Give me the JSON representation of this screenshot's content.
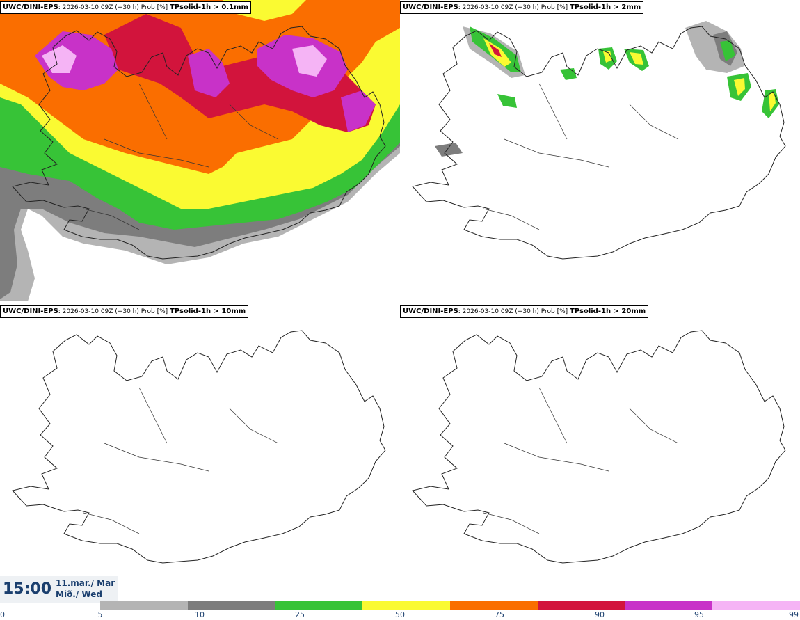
{
  "panels": [
    {
      "model": "UWC/DINI-EPS",
      "info": ": 2026-03-10 09Z (+30 h) Prob [%] ",
      "threshold": "TPsolid-1h > 0.1mm"
    },
    {
      "model": "UWC/DINI-EPS",
      "info": ": 2026-03-10 09Z (+30 h) Prob [%] ",
      "threshold": "TPsolid-1h > 2mm"
    },
    {
      "model": "UWC/DINI-EPS",
      "info": ": 2026-03-10 09Z (+30 h) Prob [%] ",
      "threshold": "TPsolid-1h > 10mm"
    },
    {
      "model": "UWC/DINI-EPS",
      "info": ": 2026-03-10 09Z (+30 h) Prob [%] ",
      "threshold": "TPsolid-1h > 20mm"
    }
  ],
  "valid_time": {
    "time": "15:00",
    "date_line1": "11.mar./ Mar",
    "date_line2": "Mið./ Wed"
  },
  "colorbar": {
    "ticks": [
      "0",
      "5",
      "10",
      "25",
      "50",
      "75",
      "90",
      "95",
      "99"
    ],
    "colors": [
      "#b4b4b4",
      "#7d7d7d",
      "#37c337",
      "#fafa32",
      "#fa6e00",
      "#d2143c",
      "#c832c8",
      "#f5b4f5"
    ]
  },
  "colors": {
    "coast": "#222222",
    "grey_light": "#b4b4b4",
    "grey_dark": "#7d7d7d",
    "green": "#37c337",
    "yellow": "#fafa32",
    "orange": "#fa6e00",
    "red": "#d2143c",
    "magenta": "#c832c8",
    "pink": "#f5b4f5"
  }
}
